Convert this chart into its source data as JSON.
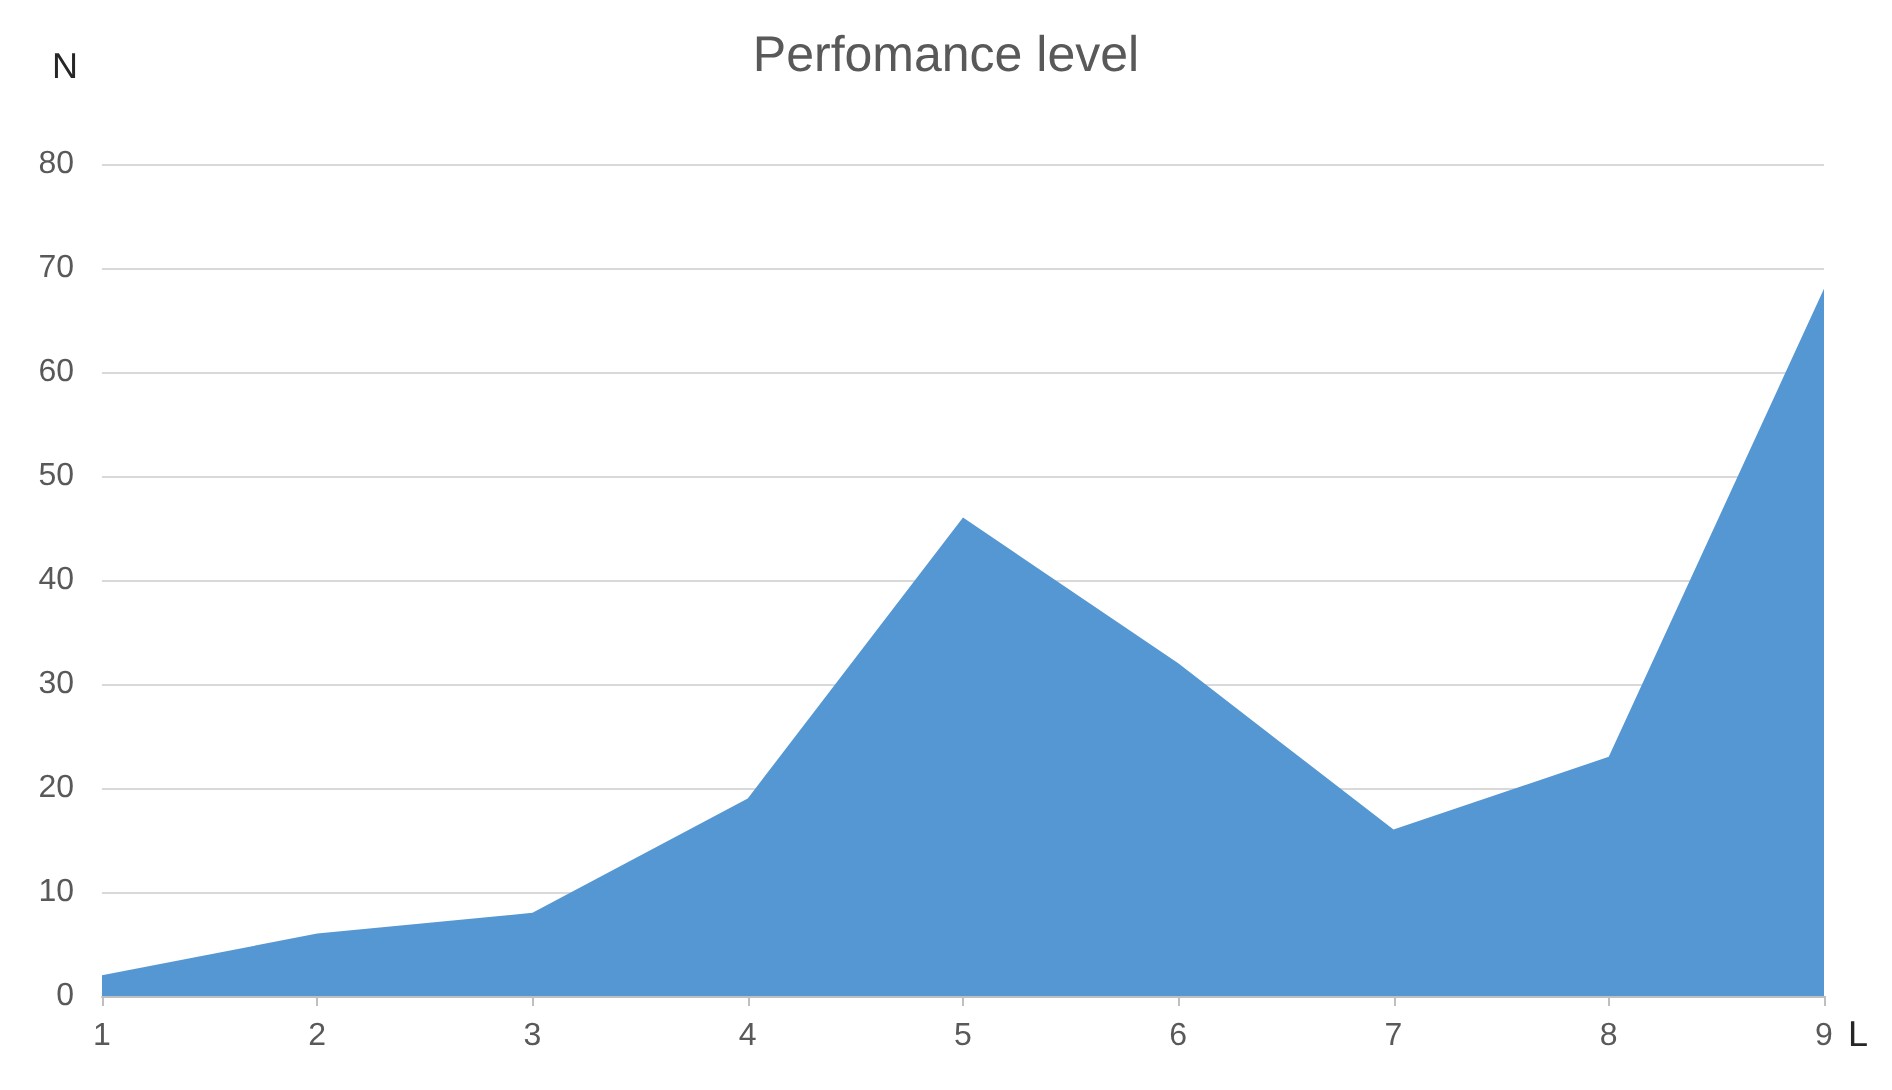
{
  "chart_data": {
    "type": "area",
    "title": "Perfomance level",
    "xlabel": "L",
    "ylabel": "N",
    "categories": [
      "1",
      "2",
      "3",
      "4",
      "5",
      "6",
      "7",
      "8",
      "9"
    ],
    "series": [
      {
        "color": "#5597d3",
        "values": [
          2,
          6,
          8,
          19,
          46,
          32,
          16,
          23,
          68
        ]
      }
    ],
    "ylim": [
      0,
      80
    ],
    "yticks": [
      0,
      10,
      20,
      30,
      40,
      50,
      60,
      70,
      80
    ],
    "grid": "y"
  }
}
